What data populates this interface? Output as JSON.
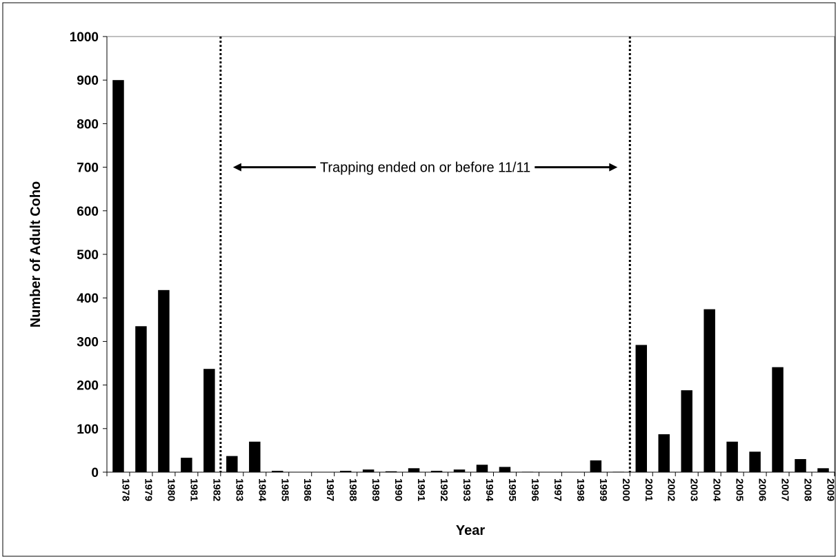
{
  "chart_data": {
    "type": "bar",
    "y_label": "Number of Adult Coho",
    "x_label": "Year",
    "categories": [
      "1978",
      "1979",
      "1980",
      "1981",
      "1982",
      "1983",
      "1984",
      "1985",
      "1986",
      "1987",
      "1988",
      "1989",
      "1990",
      "1991",
      "1992",
      "1993",
      "1994",
      "1995",
      "1996",
      "1997",
      "1998",
      "1999",
      "2000",
      "2001",
      "2002",
      "2003",
      "2004",
      "2005",
      "2006",
      "2007",
      "2008",
      "2009"
    ],
    "values": [
      900,
      335,
      418,
      33,
      237,
      37,
      70,
      3,
      0,
      0,
      3,
      6,
      2,
      9,
      3,
      6,
      17,
      12,
      1,
      0,
      0,
      27,
      1,
      292,
      87,
      188,
      374,
      70,
      47,
      241,
      30,
      9
    ],
    "color": "#000000",
    "ylim": [
      0,
      1000
    ],
    "yticks": [
      0,
      100,
      200,
      300,
      400,
      500,
      600,
      700,
      800,
      900,
      1000
    ],
    "grid": false,
    "period": {
      "start": "1983",
      "end": "2000",
      "label": "Trapping ended on or before 11/11"
    }
  }
}
